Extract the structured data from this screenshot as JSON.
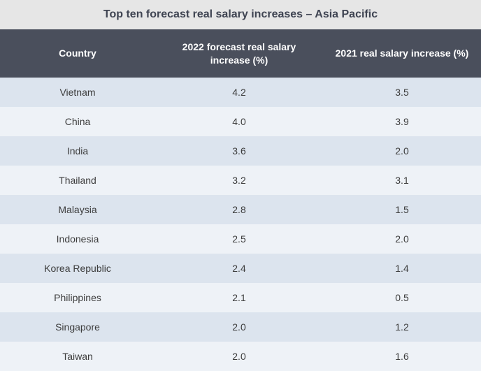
{
  "title": "Top ten forecast real salary increases – Asia Pacific",
  "colors": {
    "header_bg": "#4a4f5c",
    "row_odd": "#dce4ee",
    "row_even": "#eef2f7",
    "title_bg": "#e6e6e6"
  },
  "chart_data": {
    "type": "table",
    "title": "Top ten forecast real salary increases – Asia Pacific",
    "columns": [
      "Country",
      "2022 forecast real salary increase (%)",
      "2021 real salary increase (%)"
    ],
    "rows": [
      [
        "Vietnam",
        "4.2",
        "3.5"
      ],
      [
        "China",
        "4.0",
        "3.9"
      ],
      [
        "India",
        "3.6",
        "2.0"
      ],
      [
        "Thailand",
        "3.2",
        "3.1"
      ],
      [
        "Malaysia",
        "2.8",
        "1.5"
      ],
      [
        "Indonesia",
        "2.5",
        "2.0"
      ],
      [
        "Korea Republic",
        "2.4",
        "1.4"
      ],
      [
        "Philippines",
        "2.1",
        "0.5"
      ],
      [
        "Singapore",
        "2.0",
        "1.2"
      ],
      [
        "Taiwan",
        "2.0",
        "1.6"
      ]
    ]
  }
}
